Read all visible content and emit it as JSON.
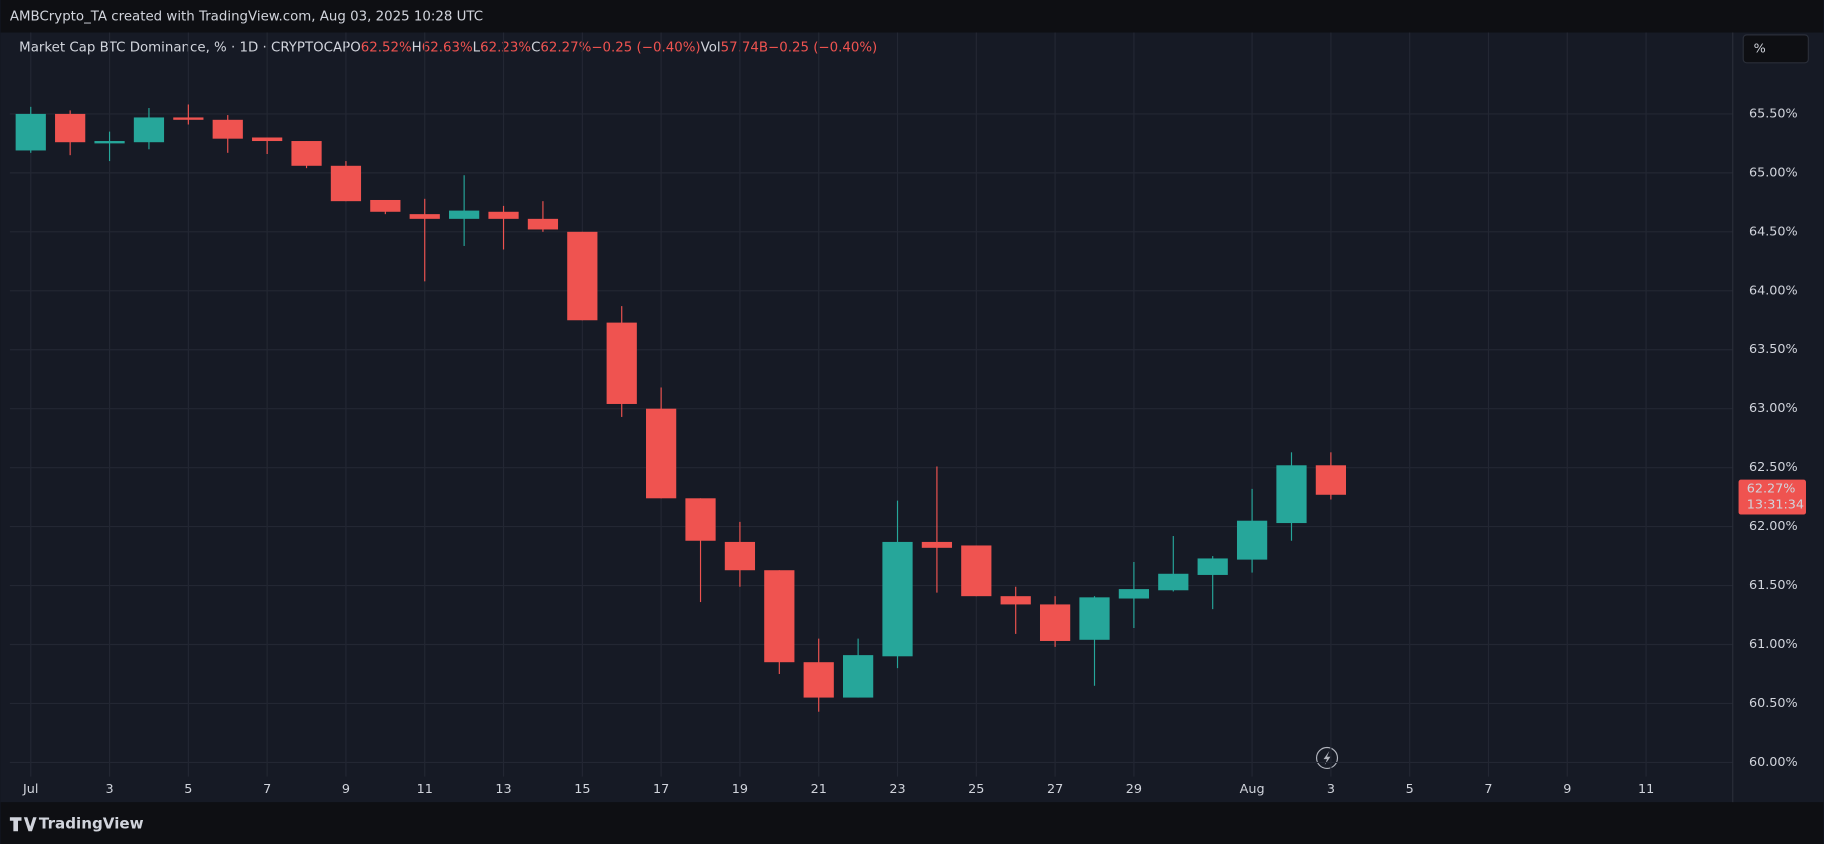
{
  "header": {
    "credit": "AMBCrypto_TA created with TradingView.com, Aug 03, 2025 10:28 UTC",
    "unit_button": "%",
    "footer": "TradingView"
  },
  "legend": {
    "symbol": "Market Cap BTC Dominance, % · 1D · CRYPTOCAP",
    "items": [
      {
        "key": "O",
        "value": "62.52%"
      },
      {
        "key": "H",
        "value": "62.63%"
      },
      {
        "key": "L",
        "value": "62.23%"
      },
      {
        "key": "C",
        "value": "62.27%"
      }
    ],
    "change": "−0.25 (−0.40%)",
    "vol_key": "Vol",
    "vol_value": "57.74B",
    "vol_change": "−0.25 (−0.40%)"
  },
  "chart_data": {
    "type": "candlestick",
    "x": [
      1,
      2,
      3,
      4,
      5,
      6,
      7,
      8,
      9,
      10,
      11,
      12,
      13,
      14,
      15,
      16,
      17,
      18,
      19,
      20,
      21,
      22,
      23,
      24,
      25,
      26,
      27,
      28,
      29,
      30,
      31,
      32,
      33,
      34
    ],
    "open": [
      65.19,
      65.5,
      65.25,
      65.26,
      65.47,
      65.45,
      65.3,
      65.27,
      65.06,
      64.77,
      64.65,
      64.61,
      64.67,
      64.61,
      64.5,
      63.73,
      63.0,
      62.24,
      61.87,
      61.63,
      60.85,
      60.55,
      60.9,
      61.87,
      61.84,
      61.41,
      61.34,
      61.04,
      61.39,
      61.46,
      61.59,
      61.72,
      62.03,
      62.52
    ],
    "high": [
      65.56,
      65.53,
      65.35,
      65.55,
      65.58,
      65.49,
      65.3,
      65.27,
      65.1,
      64.77,
      64.78,
      64.98,
      64.72,
      64.76,
      64.5,
      63.87,
      63.18,
      62.24,
      62.04,
      61.63,
      61.05,
      61.05,
      62.22,
      62.51,
      61.84,
      61.49,
      61.41,
      61.41,
      61.7,
      61.92,
      61.75,
      62.32,
      62.63,
      62.63
    ],
    "low": [
      65.17,
      65.15,
      65.1,
      65.2,
      65.41,
      65.17,
      65.16,
      65.04,
      64.76,
      64.65,
      64.08,
      64.38,
      64.35,
      64.5,
      63.75,
      62.93,
      62.24,
      61.36,
      61.49,
      60.75,
      60.43,
      60.55,
      60.8,
      61.44,
      61.41,
      61.09,
      60.98,
      60.65,
      61.14,
      61.45,
      61.3,
      61.61,
      61.88,
      62.23
    ],
    "close": [
      65.5,
      65.26,
      65.27,
      65.47,
      65.45,
      65.29,
      65.27,
      65.06,
      64.76,
      64.67,
      64.61,
      64.68,
      64.61,
      64.52,
      63.75,
      63.04,
      62.24,
      61.88,
      61.63,
      60.85,
      60.55,
      60.91,
      61.87,
      61.82,
      61.41,
      61.34,
      61.03,
      61.4,
      61.47,
      61.6,
      61.73,
      62.05,
      62.52,
      62.27
    ],
    "up_color": "#26a69a",
    "down_color": "#ef5350",
    "xlim": [
      0.47,
      44.2
    ],
    "xticks": [
      {
        "value": 1,
        "label": "Jul"
      },
      3,
      5,
      7,
      9,
      11,
      13,
      15,
      17,
      19,
      21,
      23,
      25,
      27,
      29,
      {
        "value": 32,
        "label": "Aug"
      },
      {
        "value": 34,
        "label": "3"
      },
      {
        "value": 36,
        "label": "5"
      },
      {
        "value": 38,
        "label": "7"
      },
      {
        "value": 40,
        "label": "9"
      },
      {
        "value": 42,
        "label": "11"
      }
    ],
    "ylim": [
      59.88,
      66.19
    ],
    "yticks": [
      {
        "value": 60,
        "label": "60.00%"
      },
      {
        "value": 60.5,
        "label": "60.50%"
      },
      {
        "value": 61,
        "label": "61.00%"
      },
      {
        "value": 61.5,
        "label": "61.50%"
      },
      {
        "value": 62,
        "label": "62.00%"
      },
      {
        "value": 62.5,
        "label": "62.50%"
      },
      {
        "value": 63,
        "label": "63.00%"
      },
      {
        "value": 63.5,
        "label": "63.50%"
      },
      {
        "value": 64,
        "label": "64.00%"
      },
      {
        "value": 64.5,
        "label": "64.50%"
      },
      {
        "value": 65,
        "label": "65.00%"
      },
      {
        "value": 65.5,
        "label": "65.50%"
      }
    ],
    "grid": true,
    "last_price_label": "62.27%",
    "countdown": "13:31:34"
  }
}
